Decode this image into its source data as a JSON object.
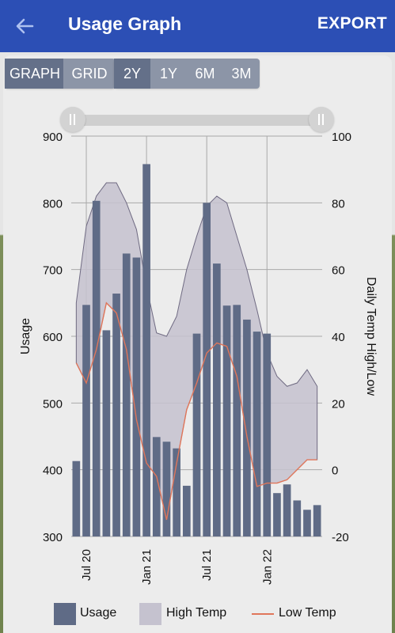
{
  "appbar": {
    "title": "Usage Graph",
    "export_label": "EXPORT",
    "color": "#2c4fb5"
  },
  "view_toggle": [
    {
      "label": "GRAPH",
      "selected": true
    },
    {
      "label": "GRID",
      "selected": false
    }
  ],
  "range_toggle": [
    {
      "label": "2Y",
      "selected": true
    },
    {
      "label": "1Y",
      "selected": false
    },
    {
      "label": "6M",
      "selected": false
    },
    {
      "label": "3M",
      "selected": false
    }
  ],
  "chart_data": {
    "type": "bar",
    "xlabel": "",
    "ylabel": "Usage",
    "y2label": "Daily Temp High/Low",
    "ylim": [
      300,
      900
    ],
    "y2lim": [
      -20,
      100
    ],
    "yticks": [
      "900",
      "800",
      "700",
      "600",
      "500",
      "400",
      "300"
    ],
    "y2ticks": [
      "100",
      "80",
      "60",
      "40",
      "20",
      "0",
      "-20"
    ],
    "xticks": [
      "Jul 20",
      "Jan 21",
      "Jul 21",
      "Jan 22"
    ],
    "series": [
      {
        "name": "Usage",
        "type": "bar",
        "color": "#5f6b86",
        "values": [
          413,
          647,
          803,
          609,
          664,
          724,
          718,
          858,
          449,
          442,
          432,
          376,
          604,
          800,
          709,
          646,
          647,
          625,
          607,
          604,
          365,
          378,
          354,
          340,
          347
        ]
      },
      {
        "name": "High Temp",
        "type": "area",
        "color": "#c5c2cf",
        "values": [
          50,
          73,
          82,
          86,
          86,
          80,
          72,
          55,
          41,
          40,
          46,
          60,
          70,
          79,
          82,
          80,
          70,
          60,
          48,
          35,
          28,
          25,
          26,
          30,
          25
        ]
      },
      {
        "name": "Low Temp",
        "type": "line",
        "color": "#e0765a",
        "values": [
          32,
          26,
          36,
          50,
          47,
          36,
          15,
          2,
          -2,
          -15,
          2,
          18,
          26,
          35,
          38,
          37,
          28,
          10,
          -5,
          -4,
          -4,
          -3,
          0,
          3,
          3
        ]
      }
    ]
  },
  "legend": [
    {
      "label": "Usage",
      "color": "#5f6b86"
    },
    {
      "label": "High Temp",
      "color": "#c5c2cf"
    },
    {
      "label": "Low Temp",
      "color": "#e0765a"
    }
  ]
}
